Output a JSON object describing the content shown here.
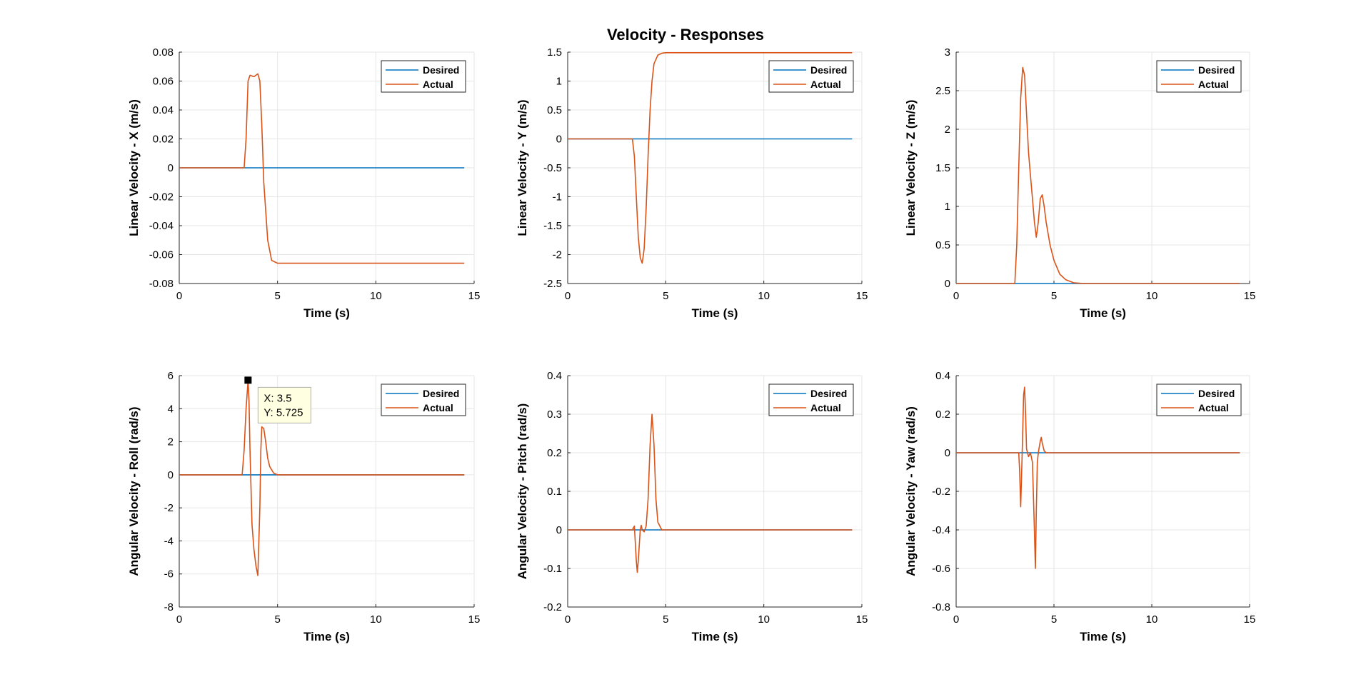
{
  "figure": {
    "title": "Velocity - Responses",
    "colors": {
      "desired": "#0072BD",
      "actual": "#D95319",
      "grid": "#e6e6e6",
      "axis": "#262626"
    }
  },
  "chart_data": [
    {
      "type": "line",
      "ylabel": "Linear Velocity - X (m/s)",
      "xlabel": "Time (s)",
      "xlim": [
        0,
        15
      ],
      "ylim": [
        -0.08,
        0.08
      ],
      "xticks": [
        "0",
        "5",
        "10",
        "15"
      ],
      "yticks": [
        "-0.08",
        "-0.06",
        "-0.04",
        "-0.02",
        "0",
        "0.02",
        "0.04",
        "0.06",
        "0.08"
      ],
      "legend": {
        "position": "top-right",
        "entries": [
          "Desired",
          "Actual"
        ]
      },
      "grid": true,
      "series": [
        {
          "name": "Desired",
          "x": [
            0,
            14.5
          ],
          "y": [
            0,
            0
          ]
        },
        {
          "name": "Actual",
          "x": [
            0,
            3.3,
            3.4,
            3.5,
            3.6,
            3.8,
            4.0,
            4.1,
            4.2,
            4.3,
            4.5,
            4.7,
            5.0,
            6.0,
            14.5
          ],
          "y": [
            0,
            0,
            0.02,
            0.06,
            0.064,
            0.063,
            0.065,
            0.06,
            0.03,
            -0.01,
            -0.05,
            -0.064,
            -0.066,
            -0.066,
            -0.066
          ]
        }
      ]
    },
    {
      "type": "line",
      "ylabel": "Linear Velocity - Y (m/s)",
      "xlabel": "Time (s)",
      "xlim": [
        0,
        15
      ],
      "ylim": [
        -2.5,
        1.5
      ],
      "xticks": [
        "0",
        "5",
        "10",
        "15"
      ],
      "yticks": [
        "-2.5",
        "-2",
        "-1.5",
        "-1",
        "-0.5",
        "0",
        "0.5",
        "1",
        "1.5"
      ],
      "legend": {
        "position": "top-right",
        "entries": [
          "Desired",
          "Actual"
        ]
      },
      "grid": true,
      "series": [
        {
          "name": "Desired",
          "x": [
            0,
            14.5
          ],
          "y": [
            0,
            0
          ]
        },
        {
          "name": "Actual",
          "x": [
            0,
            3.3,
            3.4,
            3.5,
            3.6,
            3.7,
            3.8,
            3.9,
            4.0,
            4.1,
            4.2,
            4.3,
            4.4,
            4.6,
            4.8,
            5.0,
            6.0,
            14.5
          ],
          "y": [
            0,
            0,
            -0.3,
            -1.0,
            -1.7,
            -2.05,
            -2.15,
            -1.9,
            -1.2,
            -0.3,
            0.5,
            1.0,
            1.3,
            1.45,
            1.48,
            1.49,
            1.49,
            1.49
          ]
        }
      ]
    },
    {
      "type": "line",
      "ylabel": "Linear Velocity - Z (m/s)",
      "xlabel": "Time (s)",
      "xlim": [
        0,
        15
      ],
      "ylim": [
        0,
        3
      ],
      "xticks": [
        "0",
        "5",
        "10",
        "15"
      ],
      "yticks": [
        "0",
        "0.5",
        "1",
        "1.5",
        "2",
        "2.5",
        "3"
      ],
      "legend": {
        "position": "top-right",
        "entries": [
          "Desired",
          "Actual"
        ]
      },
      "grid": true,
      "series": [
        {
          "name": "Desired",
          "x": [
            0,
            14.5
          ],
          "y": [
            0,
            0
          ]
        },
        {
          "name": "Actual",
          "x": [
            0,
            3.0,
            3.1,
            3.2,
            3.3,
            3.4,
            3.5,
            3.6,
            3.7,
            3.8,
            3.9,
            4.0,
            4.1,
            4.2,
            4.3,
            4.4,
            4.5,
            4.6,
            4.8,
            5.0,
            5.3,
            5.6,
            6.0,
            6.5,
            14.5
          ],
          "y": [
            0,
            0,
            0.5,
            1.5,
            2.4,
            2.8,
            2.7,
            2.2,
            1.7,
            1.4,
            1.1,
            0.8,
            0.6,
            0.8,
            1.1,
            1.15,
            1.0,
            0.8,
            0.5,
            0.3,
            0.12,
            0.05,
            0.01,
            0.0,
            0.0
          ]
        }
      ]
    },
    {
      "type": "line",
      "ylabel": "Angular Velocity - Roll (rad/s)",
      "xlabel": "Time (s)",
      "xlim": [
        0,
        15
      ],
      "ylim": [
        -8,
        6
      ],
      "xticks": [
        "0",
        "5",
        "10",
        "15"
      ],
      "yticks": [
        "-8",
        "-6",
        "-4",
        "-2",
        "0",
        "2",
        "4",
        "6"
      ],
      "legend": {
        "position": "top-right",
        "entries": [
          "Desired",
          "Actual"
        ]
      },
      "grid": true,
      "datatip": {
        "x": 3.5,
        "y": 5.725,
        "line1": "X: 3.5",
        "line2": "Y: 5.725"
      },
      "series": [
        {
          "name": "Desired",
          "x": [
            0,
            14.5
          ],
          "y": [
            0,
            0
          ]
        },
        {
          "name": "Actual",
          "x": [
            0,
            3.2,
            3.3,
            3.4,
            3.5,
            3.55,
            3.6,
            3.7,
            3.8,
            3.9,
            4.0,
            4.1,
            4.15,
            4.2,
            4.3,
            4.4,
            4.5,
            4.6,
            4.8,
            5.0,
            5.5,
            14.5
          ],
          "y": [
            0,
            0,
            1.5,
            4.0,
            5.725,
            4.5,
            1.5,
            -3.0,
            -4.5,
            -5.5,
            -6.1,
            -2.0,
            1.5,
            2.9,
            2.8,
            2.0,
            1.0,
            0.5,
            0.1,
            0.0,
            0.0,
            0.0
          ]
        }
      ]
    },
    {
      "type": "line",
      "ylabel": "Angular Velocity - Pitch (rad/s)",
      "xlabel": "Time (s)",
      "xlim": [
        0,
        15
      ],
      "ylim": [
        -0.2,
        0.4
      ],
      "xticks": [
        "0",
        "5",
        "10",
        "15"
      ],
      "yticks": [
        "-0.2",
        "-0.1",
        "0",
        "0.1",
        "0.2",
        "0.3",
        "0.4"
      ],
      "legend": {
        "position": "top-right",
        "entries": [
          "Desired",
          "Actual"
        ]
      },
      "grid": true,
      "series": [
        {
          "name": "Desired",
          "x": [
            0,
            14.5
          ],
          "y": [
            0,
            0
          ]
        },
        {
          "name": "Actual",
          "x": [
            0,
            3.3,
            3.4,
            3.5,
            3.55,
            3.6,
            3.7,
            3.75,
            3.8,
            3.9,
            4.0,
            4.1,
            4.2,
            4.3,
            4.4,
            4.5,
            4.6,
            4.8,
            5.0,
            14.5
          ],
          "y": [
            0,
            0,
            0.01,
            -0.08,
            -0.11,
            -0.08,
            0.0,
            0.012,
            0.0,
            -0.005,
            0.01,
            0.08,
            0.22,
            0.3,
            0.22,
            0.08,
            0.02,
            0.0,
            0.0,
            0.0
          ]
        }
      ]
    },
    {
      "type": "line",
      "ylabel": "Angular Velocity - Yaw (rad/s)",
      "xlabel": "Time (s)",
      "xlim": [
        0,
        15
      ],
      "ylim": [
        -0.8,
        0.4
      ],
      "xticks": [
        "0",
        "5",
        "10",
        "15"
      ],
      "yticks": [
        "-0.8",
        "-0.6",
        "-0.4",
        "-0.2",
        "0",
        "0.2",
        "0.4"
      ],
      "legend": {
        "position": "top-right",
        "entries": [
          "Desired",
          "Actual"
        ]
      },
      "grid": true,
      "series": [
        {
          "name": "Desired",
          "x": [
            0,
            14.5
          ],
          "y": [
            0,
            0
          ]
        },
        {
          "name": "Actual",
          "x": [
            0,
            3.2,
            3.25,
            3.3,
            3.35,
            3.4,
            3.45,
            3.5,
            3.55,
            3.6,
            3.7,
            3.8,
            3.9,
            4.0,
            4.05,
            4.1,
            4.15,
            4.2,
            4.3,
            4.35,
            4.4,
            4.5,
            4.6,
            4.8,
            14.5
          ],
          "y": [
            0,
            0,
            -0.1,
            -0.28,
            -0.1,
            0.1,
            0.3,
            0.34,
            0.2,
            0.02,
            -0.02,
            0.0,
            -0.05,
            -0.4,
            -0.6,
            -0.3,
            -0.05,
            0.0,
            0.06,
            0.08,
            0.05,
            0.01,
            0.0,
            0.0,
            0.0
          ]
        }
      ]
    }
  ]
}
